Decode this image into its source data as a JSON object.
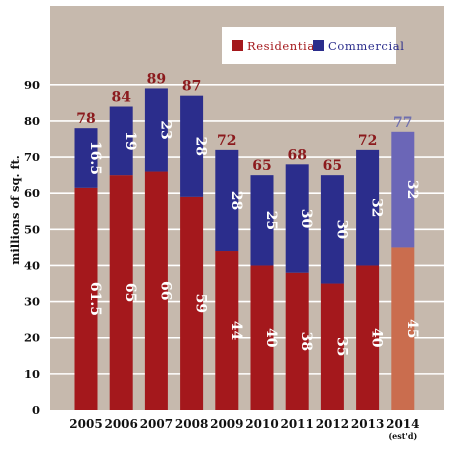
{
  "chart_data": {
    "type": "bar",
    "stacked": true,
    "title": "",
    "xlabel": "",
    "ylabel": "millions of sq. ft.",
    "ylim": [
      0,
      95
    ],
    "yticks": [
      0,
      10,
      20,
      30,
      40,
      50,
      60,
      70,
      80,
      90
    ],
    "grid": true,
    "legend_position": "top-right",
    "categories": [
      "2005",
      "2006",
      "2007",
      "2008",
      "2009",
      "2010",
      "2011",
      "2012",
      "2013",
      "2014"
    ],
    "category_notes": [
      "",
      "",
      "",
      "",
      "",
      "",
      "",
      "",
      "",
      "(est'd)"
    ],
    "series": [
      {
        "name": "Residential",
        "values": [
          61.5,
          65,
          66,
          59,
          44,
          40,
          38,
          35,
          40,
          45
        ]
      },
      {
        "name": "Commercial",
        "values": [
          16.5,
          19,
          23,
          28,
          28,
          25,
          30,
          30,
          32,
          32
        ]
      }
    ],
    "totals": [
      78,
      84,
      89,
      87,
      72,
      65,
      68,
      65,
      72,
      77
    ],
    "estimated_index": 9,
    "colors": {
      "background": "#c6b9ad",
      "gridline": "#ffffff",
      "residential": "#a4181c",
      "commercial": "#2b2d8c",
      "residential_estimated": "#ca6d4e",
      "commercial_estimated": "#6b66b7",
      "total_label": "#8b1a1d",
      "total_label_estimated": "#6f6fae",
      "axis_text": "#111111"
    }
  }
}
